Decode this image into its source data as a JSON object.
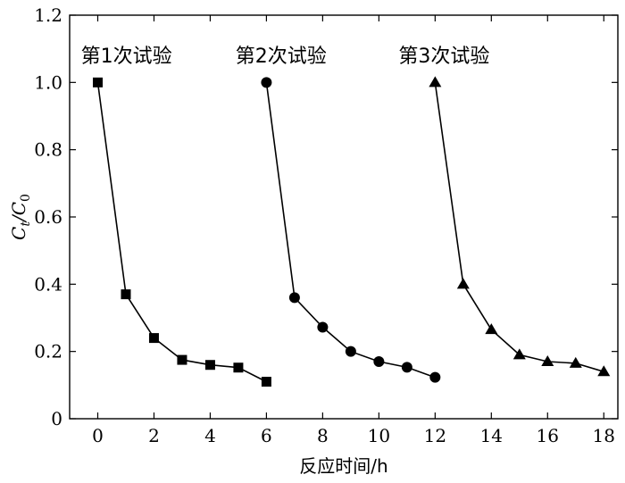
{
  "chart_data": {
    "type": "line",
    "xlabel": "反应时间/h",
    "ylabel_main": "C",
    "ylabel_sub1": "t",
    "ylabel_mid": "/C",
    "ylabel_sub2": "0",
    "xlim": [
      -1,
      18.5
    ],
    "ylim": [
      0,
      1.2
    ],
    "xticks": [
      0,
      2,
      4,
      6,
      8,
      10,
      12,
      14,
      16,
      18
    ],
    "yticks": [
      0,
      0.2,
      0.4,
      0.6,
      0.8,
      1.0,
      1.2
    ],
    "ytick_labels": [
      "0",
      "0.2",
      "0.4",
      "0.6",
      "0.8",
      "1.0",
      "1.2"
    ],
    "grid": false,
    "series": [
      {
        "marker": "square",
        "x": [
          0,
          1,
          2,
          3,
          4,
          5,
          6
        ],
        "y": [
          1.0,
          0.37,
          0.24,
          0.175,
          0.16,
          0.152,
          0.11
        ]
      },
      {
        "marker": "circle",
        "x": [
          6,
          7,
          8,
          9,
          10,
          11,
          12
        ],
        "y": [
          1.0,
          0.36,
          0.272,
          0.2,
          0.17,
          0.153,
          0.123
        ]
      },
      {
        "marker": "triangle",
        "x": [
          12,
          13,
          14,
          15,
          16,
          17,
          18
        ],
        "y": [
          1.0,
          0.4,
          0.265,
          0.19,
          0.17,
          0.165,
          0.14
        ]
      }
    ],
    "annotations": [
      {
        "text": "第1次试验",
        "x": -0.6,
        "y": 1.08
      },
      {
        "text": "第2次试验",
        "x": 4.9,
        "y": 1.08
      },
      {
        "text": "第3次试验",
        "x": 10.7,
        "y": 1.08
      }
    ]
  }
}
